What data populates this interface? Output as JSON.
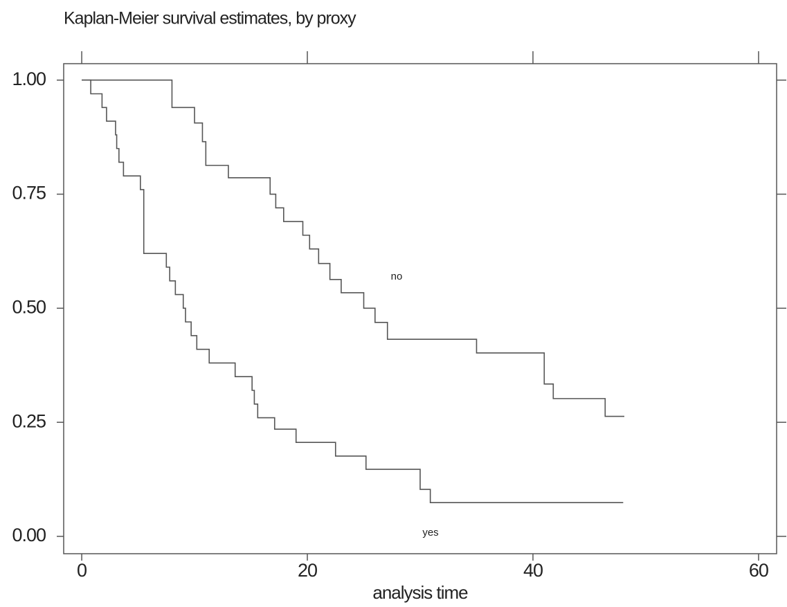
{
  "chart_data": {
    "type": "step",
    "title": "Kaplan-Meier survival estimates, by proxy",
    "x_label": "analysis time",
    "xlim": [
      -1.6,
      61.6
    ],
    "ylim": [
      -0.038,
      1.036
    ],
    "xticks": [
      0,
      20,
      40,
      60
    ],
    "yticks": [
      {
        "value": 0,
        "label": "0.00"
      },
      0.25,
      {
        "value": 0.5,
        "label": "0.50"
      },
      0.75,
      {
        "value": 1,
        "label": "1.00"
      }
    ],
    "series": [
      {
        "name": "no",
        "color": "#555555",
        "x": [
          0,
          8.0,
          10.0,
          10.7,
          11.0,
          13.0,
          16.7,
          17.2,
          17.9,
          19.6,
          20.2,
          21.0,
          22.0,
          23.0,
          25.0,
          26.0,
          27.1,
          35.0,
          41.0,
          41.8,
          46.4,
          48.1
        ],
        "values": [
          1.0,
          0.94,
          0.906,
          0.865,
          0.813,
          0.786,
          0.75,
          0.72,
          0.69,
          0.66,
          0.63,
          0.598,
          0.563,
          0.534,
          0.5,
          0.469,
          0.432,
          0.402,
          0.334,
          0.302,
          0.263,
          0.263
        ]
      },
      {
        "name": "yes",
        "color": "#555555",
        "x": [
          0,
          0.8,
          1.8,
          2.2,
          3.0,
          3.1,
          3.3,
          3.7,
          5.2,
          5.5,
          7.5,
          7.8,
          8.3,
          9.0,
          9.2,
          9.7,
          10.2,
          11.3,
          13.6,
          15.1,
          15.3,
          15.6,
          17.1,
          19.0,
          22.5,
          25.2,
          30.0,
          30.9,
          48.0
        ],
        "values": [
          1.0,
          0.97,
          0.94,
          0.91,
          0.88,
          0.85,
          0.82,
          0.79,
          0.76,
          0.62,
          0.59,
          0.56,
          0.53,
          0.5,
          0.47,
          0.44,
          0.41,
          0.38,
          0.35,
          0.32,
          0.29,
          0.26,
          0.235,
          0.206,
          0.176,
          0.147,
          0.103,
          0.074,
          0.074
        ]
      }
    ]
  }
}
